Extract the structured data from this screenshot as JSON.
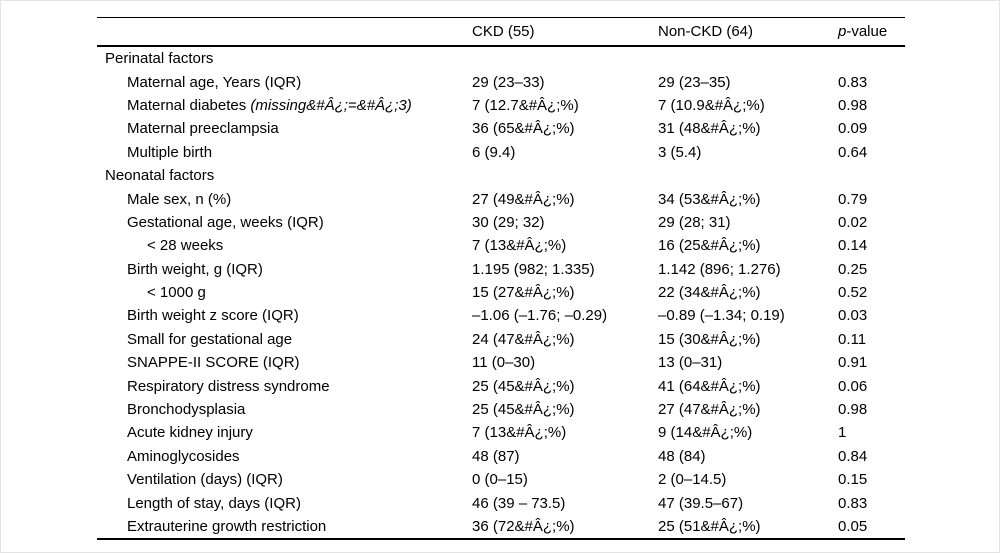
{
  "table": {
    "header": {
      "label": "",
      "ckd": "CKD (55)",
      "nonckd": "Non-CKD (64)",
      "p_italic": "p",
      "p_rest": "-value"
    },
    "rows": [
      {
        "label": "Perinatal factors",
        "indent": 0,
        "ckd": "",
        "nonckd": "",
        "p": ""
      },
      {
        "label": "Maternal age, Years (IQR)",
        "indent": 1,
        "ckd": "29 (23–33)",
        "nonckd": "29 (23–35)",
        "p": "0.83"
      },
      {
        "label": "Maternal diabetes ",
        "label_italic": "(missing&#Â¿;=&#Â¿;3)",
        "indent": 1,
        "ckd": "7 (12.7&#Â¿;%)",
        "nonckd": "7 (10.9&#Â¿;%)",
        "p": "0.98"
      },
      {
        "label": "Maternal preeclampsia",
        "indent": 1,
        "ckd": "36 (65&#Â¿;%)",
        "nonckd": "31 (48&#Â¿;%)",
        "p": "0.09"
      },
      {
        "label": "Multiple birth",
        "indent": 1,
        "ckd": "6 (9.4)",
        "nonckd": "3 (5.4)",
        "p": "0.64"
      },
      {
        "label": "Neonatal factors",
        "indent": 0,
        "ckd": "",
        "nonckd": "",
        "p": ""
      },
      {
        "label": "Male sex, n (%)",
        "indent": 1,
        "ckd": "27 (49&#Â¿;%)",
        "nonckd": "34 (53&#Â¿;%)",
        "p": "0.79"
      },
      {
        "label": "Gestational age, weeks (IQR)",
        "indent": 1,
        "ckd": "30 (29; 32)",
        "nonckd": "29 (28; 31)",
        "p": "0.02"
      },
      {
        "label": "< 28 weeks",
        "indent": 2,
        "ckd": "7 (13&#Â¿;%)",
        "nonckd": "16 (25&#Â¿;%)",
        "p": "0.14"
      },
      {
        "label": "Birth weight, g (IQR)",
        "indent": 1,
        "ckd": "1.195 (982; 1.335)",
        "nonckd": "1.142 (896; 1.276)",
        "p": "0.25"
      },
      {
        "label": "< 1000 g",
        "indent": 2,
        "ckd": "15 (27&#Â¿;%)",
        "nonckd": "22 (34&#Â¿;%)",
        "p": "0.52"
      },
      {
        "label": "Birth weight z score (IQR)",
        "indent": 1,
        "ckd": "–1.06 (–1.76; –0.29)",
        "nonckd": "–0.89 (–1.34; 0.19)",
        "p": "0.03"
      },
      {
        "label": "Small for gestational age",
        "indent": 1,
        "ckd": "24 (47&#Â¿;%)",
        "nonckd": "15 (30&#Â¿;%)",
        "p": "0.11"
      },
      {
        "label": "SNAPPE-II SCORE (IQR)",
        "indent": 1,
        "ckd": "11 (0–30)",
        "nonckd": "13 (0–31)",
        "p": "0.91"
      },
      {
        "label": "Respiratory distress syndrome",
        "indent": 1,
        "ckd": "25 (45&#Â¿;%)",
        "nonckd": "41 (64&#Â¿;%)",
        "p": "0.06"
      },
      {
        "label": "Bronchodysplasia",
        "indent": 1,
        "ckd": "25 (45&#Â¿;%)",
        "nonckd": "27 (47&#Â¿;%)",
        "p": "0.98"
      },
      {
        "label": "Acute kidney injury",
        "indent": 1,
        "ckd": "7 (13&#Â¿;%)",
        "nonckd": "9 (14&#Â¿;%)",
        "p": "1"
      },
      {
        "label": "Aminoglycosides",
        "indent": 1,
        "ckd": "48 (87)",
        "nonckd": "48 (84)",
        "p": "0.84"
      },
      {
        "label": "Ventilation (days) (IQR)",
        "indent": 1,
        "ckd": "0 (0–15)",
        "nonckd": "2 (0–14.5)",
        "p": "0.15"
      },
      {
        "label": "Length of stay, days (IQR)",
        "indent": 1,
        "ckd": "46 (39 – 73.5)",
        "nonckd": "47 (39.5–67)",
        "p": "0.83"
      },
      {
        "label": "Extrauterine growth restriction",
        "indent": 1,
        "ckd": "36 (72&#Â¿;%)",
        "nonckd": "25 (51&#Â¿;%)",
        "p": "0.05"
      }
    ],
    "colors": {
      "text": "#000000",
      "rule": "#000000",
      "background": "#ffffff"
    }
  }
}
